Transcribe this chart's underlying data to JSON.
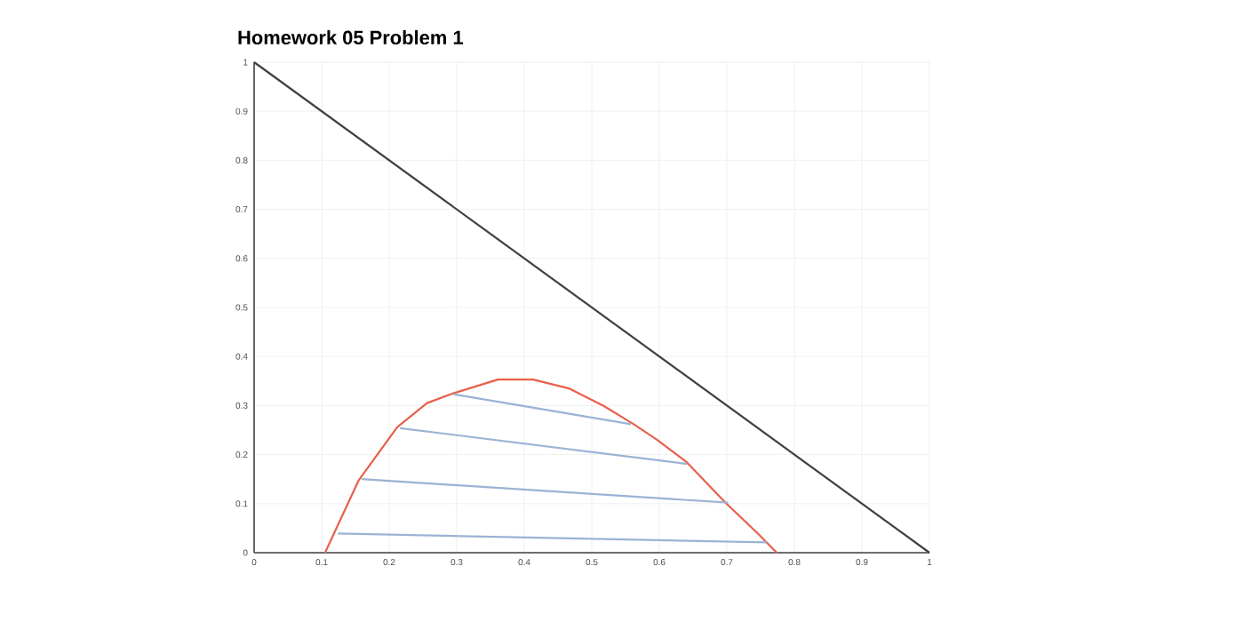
{
  "chart_data": {
    "type": "line",
    "title": "Homework 05 Problem 1",
    "xlim": [
      0,
      1
    ],
    "ylim": [
      0,
      1
    ],
    "xticks": [
      0,
      0.1,
      0.2,
      0.3,
      0.4,
      0.5,
      0.6,
      0.7,
      0.8,
      0.9,
      1
    ],
    "yticks": [
      0,
      0.1,
      0.2,
      0.3,
      0.4,
      0.5,
      0.6,
      0.7,
      0.8,
      0.9,
      1
    ],
    "grid": true,
    "marker": "none",
    "line_style": "solid",
    "series": [
      {
        "color": "#404040",
        "x": [
          0,
          1
        ],
        "values": [
          1,
          0
        ]
      },
      {
        "color": "#e8604c",
        "x": [
          0.105,
          0.155,
          0.212,
          0.256,
          0.295,
          0.361,
          0.413,
          0.466,
          0.518,
          0.562,
          0.597,
          0.641,
          0.698,
          0.746,
          0.774
        ],
        "values": [
          0,
          0.148,
          0.256,
          0.305,
          0.325,
          0.353,
          0.353,
          0.335,
          0.299,
          0.262,
          0.23,
          0.184,
          0.102,
          0.039,
          0
        ]
      },
      {
        "color": "#9bb3d4",
        "x": [
          0.124,
          0.759
        ],
        "values": [
          0.039,
          0.021
        ]
      },
      {
        "color": "#9bb3d4",
        "x": [
          0.159,
          0.702
        ],
        "values": [
          0.15,
          0.102
        ]
      },
      {
        "color": "#9bb3d4",
        "x": [
          0.216,
          0.641
        ],
        "values": [
          0.254,
          0.181
        ]
      },
      {
        "color": "#9bb3d4",
        "x": [
          0.295,
          0.558
        ],
        "values": [
          0.323,
          0.262
        ]
      }
    ]
  }
}
